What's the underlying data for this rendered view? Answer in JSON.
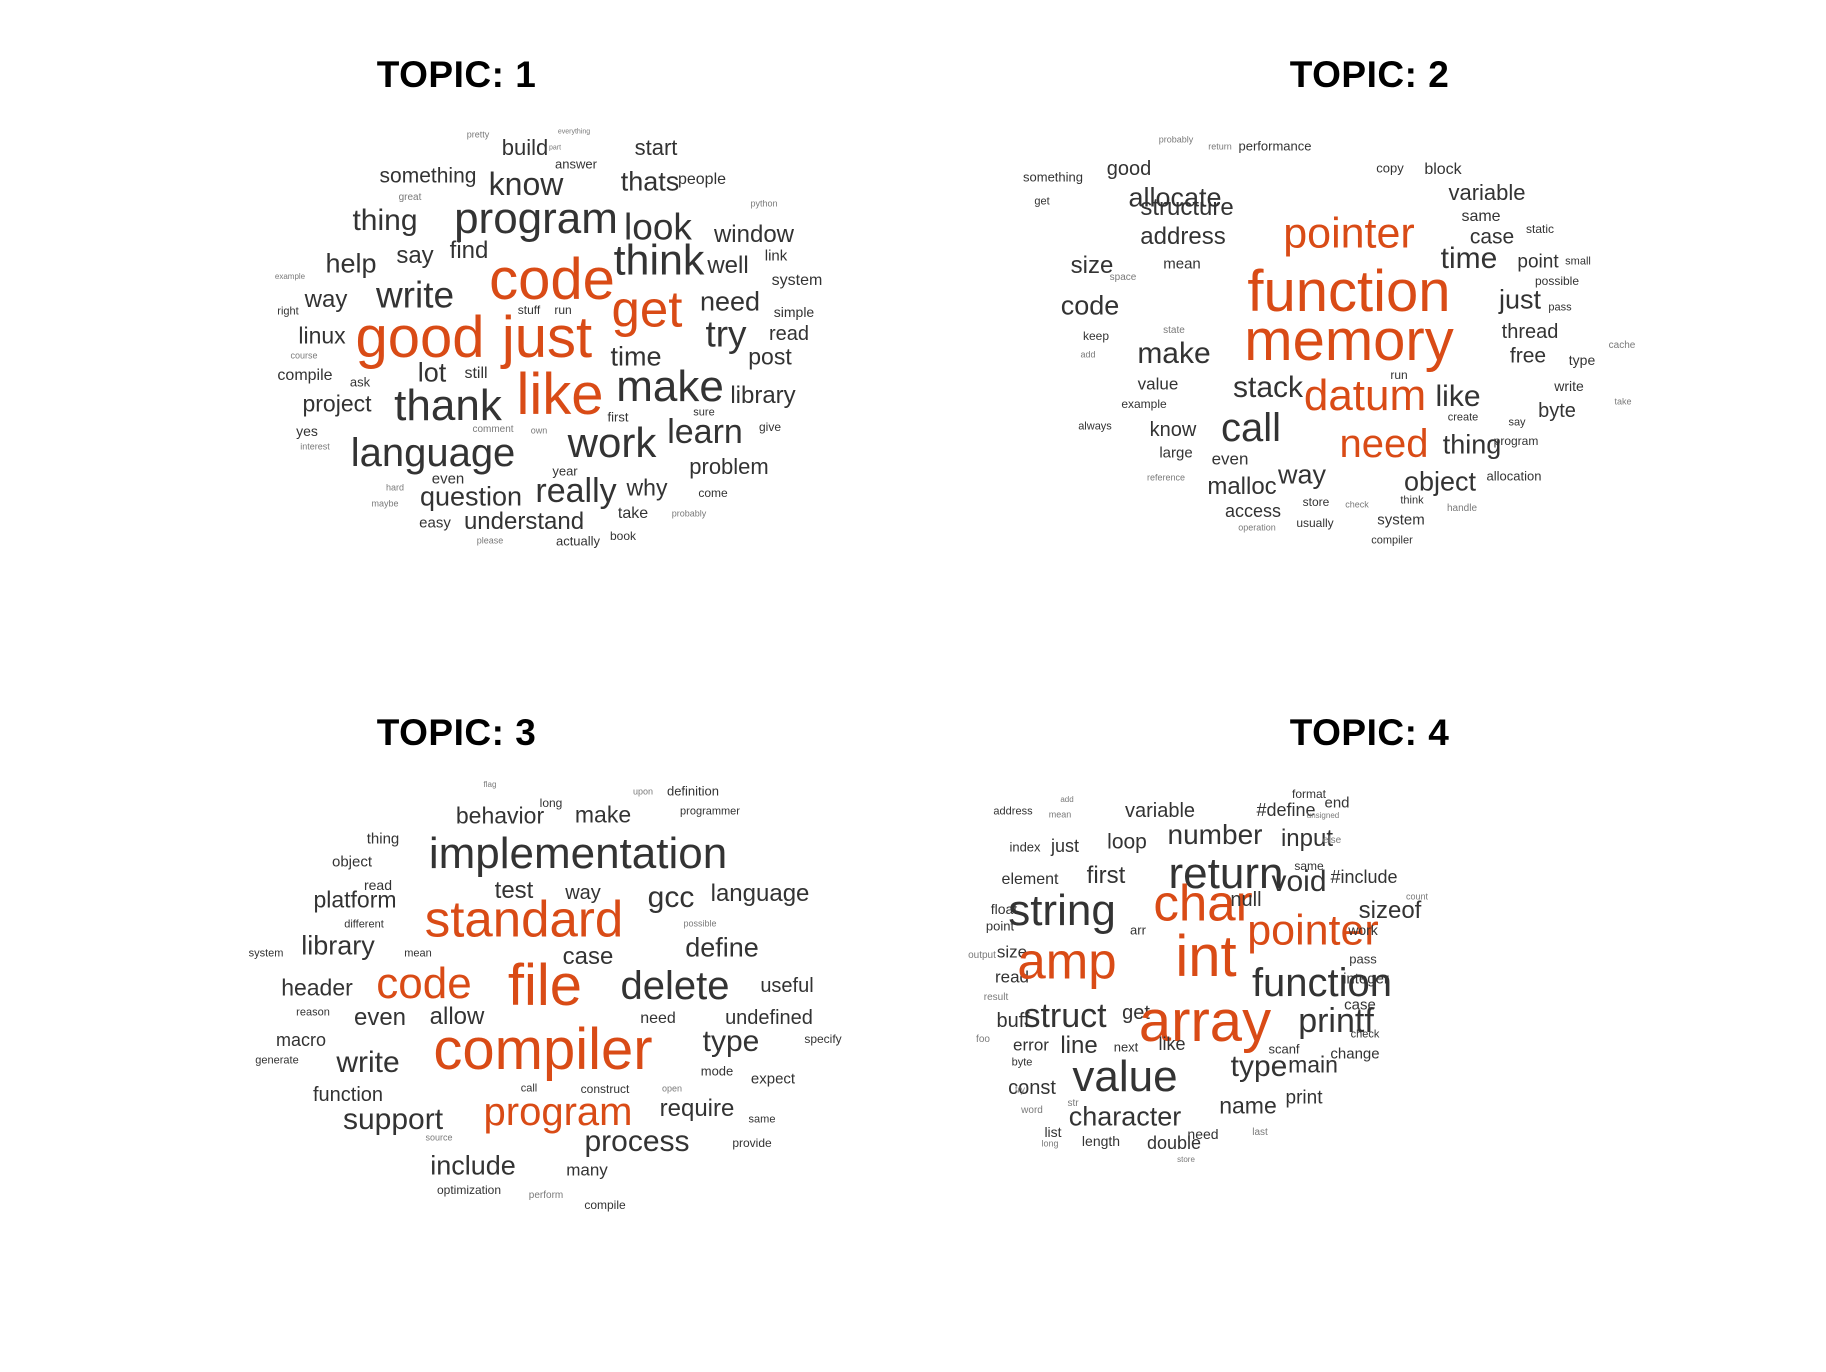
{
  "panels": [
    {
      "title": "TOPIC: 1",
      "words": [
        {
          "t": "pretty"
        },
        {
          "t": "everything"
        },
        {
          "t": "build"
        },
        {
          "t": "part"
        },
        {
          "t": "start"
        },
        {
          "t": "answer"
        },
        {
          "t": "something"
        },
        {
          "t": "know"
        },
        {
          "t": "thats"
        },
        {
          "t": "people"
        },
        {
          "t": "great"
        },
        {
          "t": "thing"
        },
        {
          "t": "program"
        },
        {
          "t": "look"
        },
        {
          "t": "python"
        },
        {
          "t": "window"
        },
        {
          "t": "help"
        },
        {
          "t": "say"
        },
        {
          "t": "find"
        },
        {
          "t": "think"
        },
        {
          "t": "well"
        },
        {
          "t": "link"
        },
        {
          "t": "example"
        },
        {
          "t": "code"
        },
        {
          "t": "system"
        },
        {
          "t": "way"
        },
        {
          "t": "write"
        },
        {
          "t": "need"
        },
        {
          "t": "right"
        },
        {
          "t": "stuff"
        },
        {
          "t": "run"
        },
        {
          "t": "get"
        },
        {
          "t": "simple"
        },
        {
          "t": "linux"
        },
        {
          "t": "good"
        },
        {
          "t": "just"
        },
        {
          "t": "try"
        },
        {
          "t": "read"
        },
        {
          "t": "course"
        },
        {
          "t": "time"
        },
        {
          "t": "post"
        },
        {
          "t": "compile"
        },
        {
          "t": "lot"
        },
        {
          "t": "still"
        },
        {
          "t": "make"
        },
        {
          "t": "ask"
        },
        {
          "t": "like"
        },
        {
          "t": "library"
        },
        {
          "t": "project"
        },
        {
          "t": "thank"
        },
        {
          "t": "first"
        },
        {
          "t": "sure"
        },
        {
          "t": "give"
        },
        {
          "t": "yes"
        },
        {
          "t": "comment"
        },
        {
          "t": "own"
        },
        {
          "t": "learn"
        },
        {
          "t": "interest"
        },
        {
          "t": "language"
        },
        {
          "t": "work"
        },
        {
          "t": "year"
        },
        {
          "t": "problem"
        },
        {
          "t": "even"
        },
        {
          "t": "hard"
        },
        {
          "t": "really"
        },
        {
          "t": "why"
        },
        {
          "t": "come"
        },
        {
          "t": "maybe"
        },
        {
          "t": "question"
        },
        {
          "t": "take"
        },
        {
          "t": "probably"
        },
        {
          "t": "easy"
        },
        {
          "t": "understand"
        },
        {
          "t": "please"
        },
        {
          "t": "actually"
        },
        {
          "t": "book"
        }
      ]
    },
    {
      "title": "TOPIC: 2",
      "words": [
        {
          "t": "probably"
        },
        {
          "t": "return"
        },
        {
          "t": "performance"
        },
        {
          "t": "good"
        },
        {
          "t": "copy"
        },
        {
          "t": "block"
        },
        {
          "t": "something"
        },
        {
          "t": "allocate"
        },
        {
          "t": "variable"
        },
        {
          "t": "structure"
        },
        {
          "t": "get"
        },
        {
          "t": "same"
        },
        {
          "t": "static"
        },
        {
          "t": "pointer"
        },
        {
          "t": "address"
        },
        {
          "t": "case"
        },
        {
          "t": "size"
        },
        {
          "t": "mean"
        },
        {
          "t": "time"
        },
        {
          "t": "point"
        },
        {
          "t": "small"
        },
        {
          "t": "space"
        },
        {
          "t": "function"
        },
        {
          "t": "possible"
        },
        {
          "t": "code"
        },
        {
          "t": "just"
        },
        {
          "t": "pass"
        },
        {
          "t": "state"
        },
        {
          "t": "memory"
        },
        {
          "t": "thread"
        },
        {
          "t": "keep"
        },
        {
          "t": "make"
        },
        {
          "t": "free"
        },
        {
          "t": "type"
        },
        {
          "t": "cache"
        },
        {
          "t": "add"
        },
        {
          "t": "value"
        },
        {
          "t": "run"
        },
        {
          "t": "stack"
        },
        {
          "t": "write"
        },
        {
          "t": "datum"
        },
        {
          "t": "example"
        },
        {
          "t": "like"
        },
        {
          "t": "byte"
        },
        {
          "t": "take"
        },
        {
          "t": "always"
        },
        {
          "t": "know"
        },
        {
          "t": "call"
        },
        {
          "t": "create"
        },
        {
          "t": "say"
        },
        {
          "t": "program"
        },
        {
          "t": "need"
        },
        {
          "t": "large"
        },
        {
          "t": "thing"
        },
        {
          "t": "even"
        },
        {
          "t": "way"
        },
        {
          "t": "object"
        },
        {
          "t": "allocation"
        },
        {
          "t": "reference"
        },
        {
          "t": "malloc"
        },
        {
          "t": "store"
        },
        {
          "t": "access"
        },
        {
          "t": "check"
        },
        {
          "t": "think"
        },
        {
          "t": "handle"
        },
        {
          "t": "usually"
        },
        {
          "t": "system"
        },
        {
          "t": "operation"
        },
        {
          "t": "compiler"
        }
      ]
    },
    {
      "title": "TOPIC: 3",
      "words": [
        {
          "t": "flag"
        },
        {
          "t": "long"
        },
        {
          "t": "upon"
        },
        {
          "t": "definition"
        },
        {
          "t": "behavior"
        },
        {
          "t": "make"
        },
        {
          "t": "programmer"
        },
        {
          "t": "thing"
        },
        {
          "t": "implementation"
        },
        {
          "t": "object"
        },
        {
          "t": "read"
        },
        {
          "t": "test"
        },
        {
          "t": "way"
        },
        {
          "t": "gcc"
        },
        {
          "t": "language"
        },
        {
          "t": "platform"
        },
        {
          "t": "standard"
        },
        {
          "t": "different"
        },
        {
          "t": "possible"
        },
        {
          "t": "library"
        },
        {
          "t": "define"
        },
        {
          "t": "system"
        },
        {
          "t": "mean"
        },
        {
          "t": "case"
        },
        {
          "t": "header"
        },
        {
          "t": "code"
        },
        {
          "t": "file"
        },
        {
          "t": "delete"
        },
        {
          "t": "useful"
        },
        {
          "t": "reason"
        },
        {
          "t": "even"
        },
        {
          "t": "allow"
        },
        {
          "t": "need"
        },
        {
          "t": "undefined"
        },
        {
          "t": "macro"
        },
        {
          "t": "compiler"
        },
        {
          "t": "type"
        },
        {
          "t": "specify"
        },
        {
          "t": "generate"
        },
        {
          "t": "write"
        },
        {
          "t": "mode"
        },
        {
          "t": "expect"
        },
        {
          "t": "function"
        },
        {
          "t": "call"
        },
        {
          "t": "construct"
        },
        {
          "t": "open"
        },
        {
          "t": "support"
        },
        {
          "t": "program"
        },
        {
          "t": "require"
        },
        {
          "t": "same"
        },
        {
          "t": "source"
        },
        {
          "t": "process"
        },
        {
          "t": "provide"
        },
        {
          "t": "include"
        },
        {
          "t": "many"
        },
        {
          "t": "optimization"
        },
        {
          "t": "perform"
        },
        {
          "t": "compile"
        }
      ]
    },
    {
      "title": "TOPIC: 4",
      "words": [
        {
          "t": "format"
        },
        {
          "t": "end"
        },
        {
          "t": "add"
        },
        {
          "t": "address"
        },
        {
          "t": "mean"
        },
        {
          "t": "variable"
        },
        {
          "t": "#define"
        },
        {
          "t": "unsigned"
        },
        {
          "t": "number"
        },
        {
          "t": "input"
        },
        {
          "t": "index"
        },
        {
          "t": "just"
        },
        {
          "t": "loop"
        },
        {
          "t": "else"
        },
        {
          "t": "return"
        },
        {
          "t": "same"
        },
        {
          "t": "element"
        },
        {
          "t": "first"
        },
        {
          "t": "void"
        },
        {
          "t": "#include"
        },
        {
          "t": "char"
        },
        {
          "t": "null"
        },
        {
          "t": "float"
        },
        {
          "t": "string"
        },
        {
          "t": "sizeof"
        },
        {
          "t": "count"
        },
        {
          "t": "point"
        },
        {
          "t": "arr"
        },
        {
          "t": "pointer"
        },
        {
          "t": "work"
        },
        {
          "t": "size"
        },
        {
          "t": "output"
        },
        {
          "t": "int"
        },
        {
          "t": "pass"
        },
        {
          "t": "read"
        },
        {
          "t": "amp"
        },
        {
          "t": "function"
        },
        {
          "t": "integer"
        },
        {
          "t": "result"
        },
        {
          "t": "buff"
        },
        {
          "t": "struct"
        },
        {
          "t": "get"
        },
        {
          "t": "array"
        },
        {
          "t": "printf"
        },
        {
          "t": "case"
        },
        {
          "t": "check"
        },
        {
          "t": "foo"
        },
        {
          "t": "error"
        },
        {
          "t": "line"
        },
        {
          "t": "next"
        },
        {
          "t": "like"
        },
        {
          "t": "scanf"
        },
        {
          "t": "change"
        },
        {
          "t": "byte"
        },
        {
          "t": "type"
        },
        {
          "t": "main"
        },
        {
          "t": "const"
        },
        {
          "t": "value"
        },
        {
          "t": "try"
        },
        {
          "t": "print"
        },
        {
          "t": "word"
        },
        {
          "t": "str"
        },
        {
          "t": "name"
        },
        {
          "t": "character"
        },
        {
          "t": "list"
        },
        {
          "t": "need"
        },
        {
          "t": "last"
        },
        {
          "t": "double"
        },
        {
          "t": "length"
        },
        {
          "t": "long"
        },
        {
          "t": "store"
        }
      ]
    }
  ]
}
